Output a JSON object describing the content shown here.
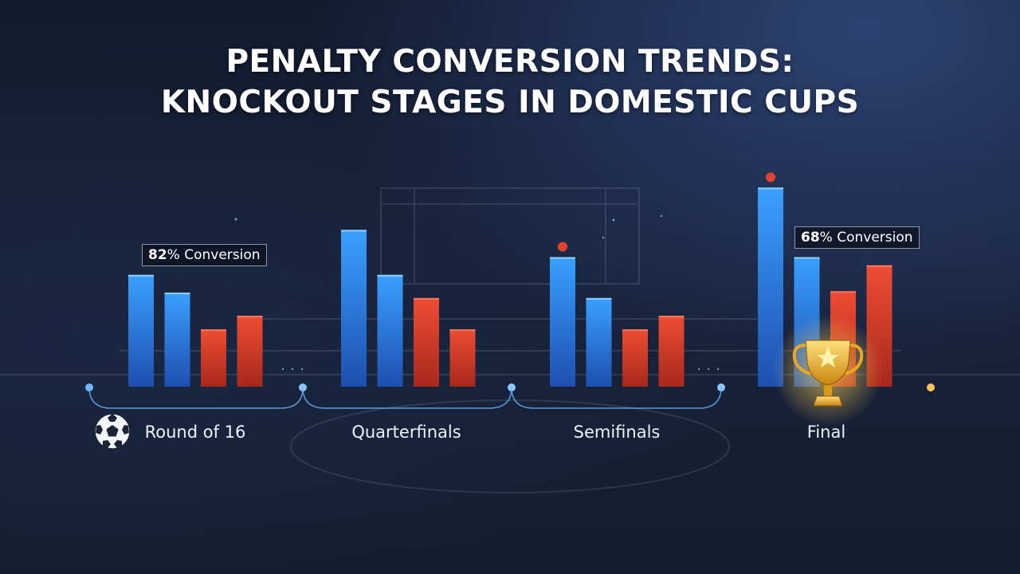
{
  "title_line1": "PENALTY CONVERSION TRENDS:",
  "title_line2": "KNOCKOUT STAGES IN DOMESTIC CUPS",
  "colors": {
    "blue": "#2f8ff0",
    "red": "#e0432c",
    "axis": "#6fb6ff",
    "gold": "#f2b632"
  },
  "icons": {
    "round_of_16": "soccer-ball-icon",
    "final": "trophy-icon"
  },
  "callouts": [
    {
      "value": "82",
      "suffix": "% Conversion"
    },
    {
      "value": "68",
      "suffix": "% Conversion"
    }
  ],
  "chart_data": {
    "type": "bar",
    "title": "PENALTY CONVERSION TRENDS: KNOCKOUT STAGES IN DOMESTIC CUPS",
    "xlabel": "",
    "ylabel": "",
    "categories": [
      "Round of 16",
      "Quarterfinals",
      "Semifinals",
      "Final"
    ],
    "bars_per_category": [
      {
        "colors": [
          "blue",
          "blue",
          "red",
          "red"
        ],
        "values": [
          82,
          69,
          42,
          52
        ]
      },
      {
        "colors": [
          "blue",
          "blue",
          "red",
          "red"
        ],
        "values": [
          115,
          82,
          65,
          42
        ]
      },
      {
        "colors": [
          "blue",
          "blue",
          "red",
          "red"
        ],
        "values": [
          95,
          65,
          42,
          52
        ]
      },
      {
        "colors": [
          "blue",
          "blue",
          "red",
          "red"
        ],
        "values": [
          146,
          95,
          70,
          89
        ]
      }
    ],
    "markers": [
      {
        "category": "Semifinals",
        "bar": 0,
        "color": "red"
      },
      {
        "category": "Final",
        "bar": 0,
        "color": "red"
      }
    ],
    "grid": false,
    "legend": "none"
  }
}
